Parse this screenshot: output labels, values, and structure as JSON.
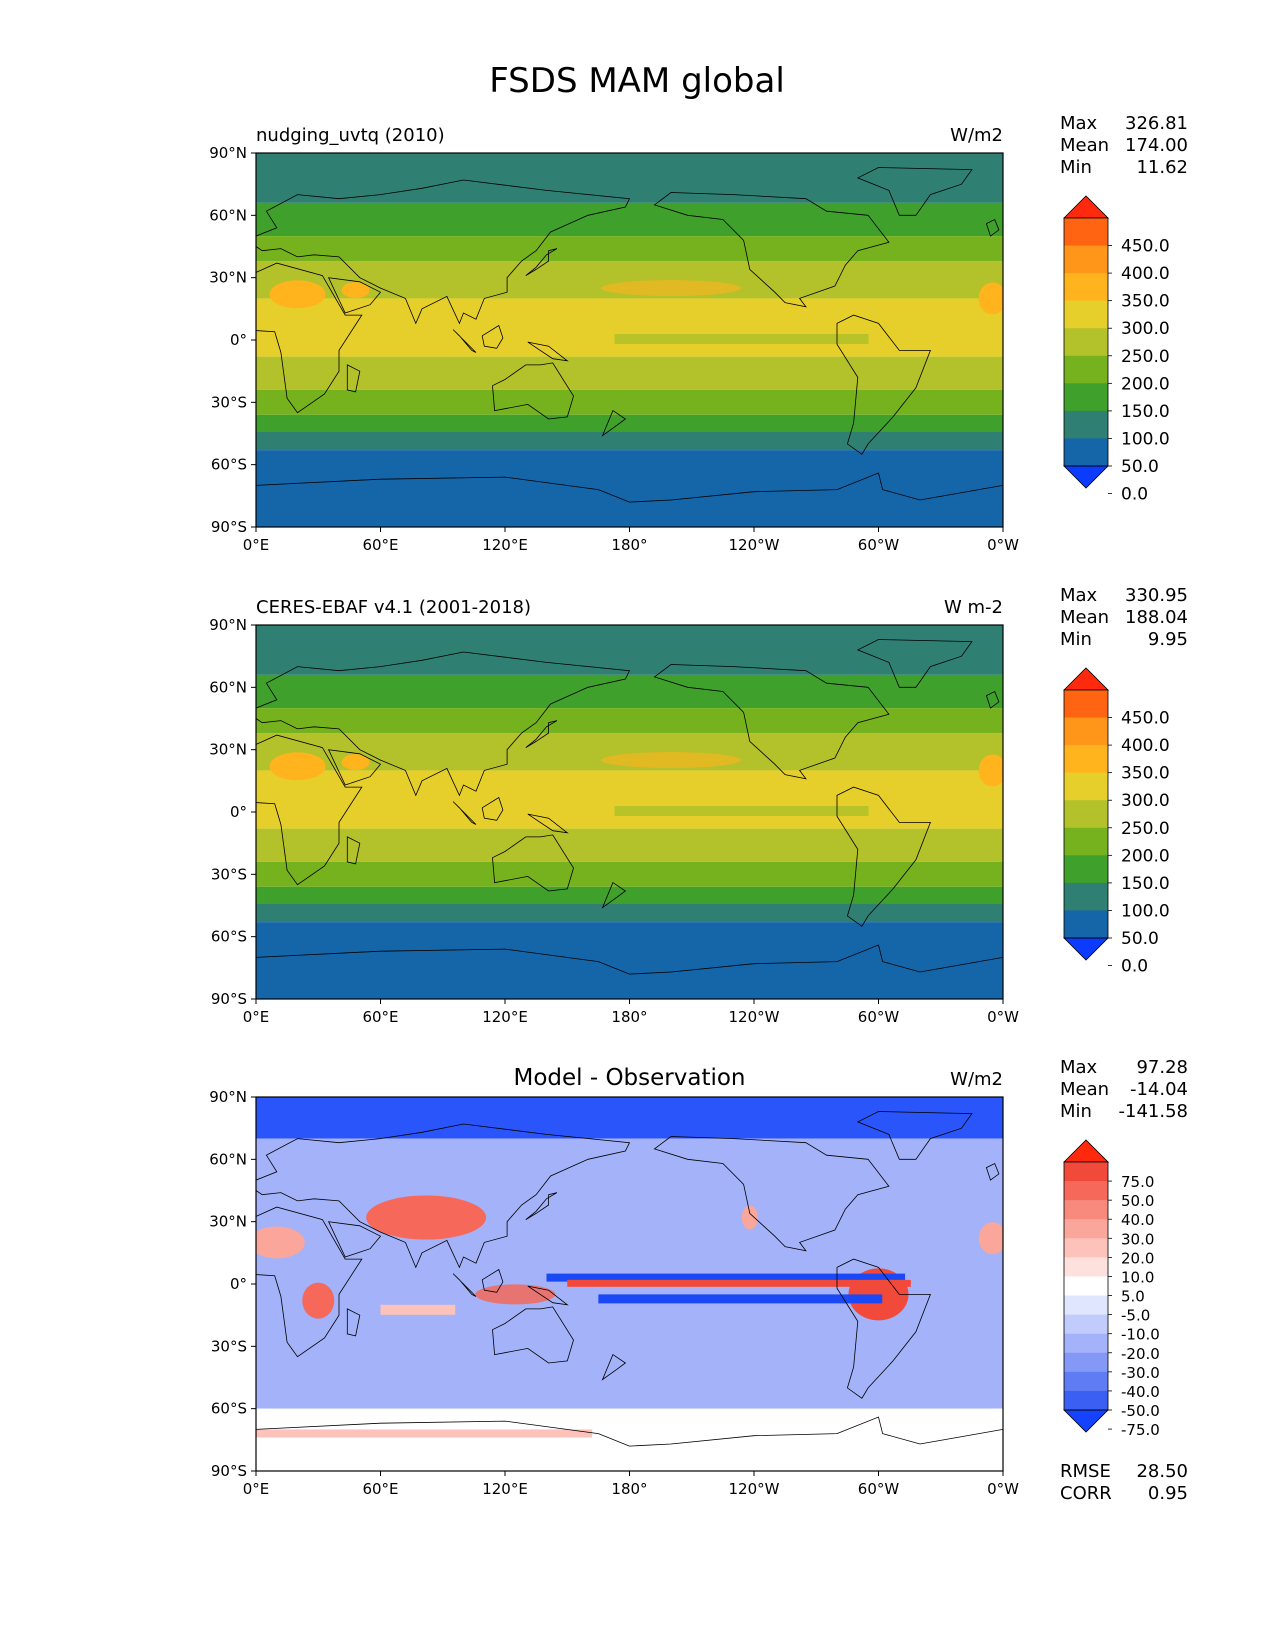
{
  "title": "FSDS MAM global",
  "axes": {
    "lat_ticks": [
      "90°N",
      "60°N",
      "30°N",
      "0°",
      "30°S",
      "60°S",
      "90°S"
    ],
    "lon_ticks": [
      "0°E",
      "60°E",
      "120°E",
      "180°",
      "120°W",
      "60°W",
      "0°W"
    ]
  },
  "panels": [
    {
      "left_title": "nudging_uvtq (2010)",
      "center_title": "",
      "units": "W/m2",
      "stats": {
        "max_label": "Max",
        "max": "326.81",
        "mean_label": "Mean",
        "mean": "174.00",
        "min_label": "Min",
        "min": "11.62"
      },
      "colorbar_labels": [
        "450.0",
        "400.0",
        "350.0",
        "300.0",
        "250.0",
        "200.0",
        "150.0",
        "100.0",
        "50.0",
        "0.0"
      ],
      "colorbar_colors": [
        "#ff2a0e",
        "#ff6412",
        "#ff9519",
        "#ffb41e",
        "#e6cf2a",
        "#b3c12a",
        "#76b21d",
        "#3fa02b",
        "#2f8072",
        "#1565a9",
        "#0b3bff"
      ],
      "map_colors": {
        "ocean_equator": "#e6cf2a",
        "band1": "#b3c12a",
        "band2": "#76b21d",
        "band3": "#3fa02b",
        "band4": "#2f8072",
        "south": "#1565a9",
        "desert": "#ffb41e"
      }
    },
    {
      "left_title": "CERES-EBAF v4.1 (2001-2018)",
      "center_title": "",
      "units": "W m-2",
      "stats": {
        "max_label": "Max",
        "max": "330.95",
        "mean_label": "Mean",
        "mean": "188.04",
        "min_label": "Min",
        "min": "9.95"
      },
      "colorbar_labels": [
        "450.0",
        "400.0",
        "350.0",
        "300.0",
        "250.0",
        "200.0",
        "150.0",
        "100.0",
        "50.0",
        "0.0"
      ],
      "colorbar_colors": [
        "#ff2a0e",
        "#ff6412",
        "#ff9519",
        "#ffb41e",
        "#e6cf2a",
        "#b3c12a",
        "#76b21d",
        "#3fa02b",
        "#2f8072",
        "#1565a9",
        "#0b3bff"
      ],
      "map_colors": {
        "ocean_equator": "#e6cf2a",
        "band1": "#b3c12a",
        "band2": "#76b21d",
        "band3": "#3fa02b",
        "band4": "#2f8072",
        "south": "#1565a9",
        "desert": "#ffb41e"
      }
    },
    {
      "left_title": "",
      "center_title": "Model - Observation",
      "units": "W/m2",
      "stats": {
        "max_label": "Max",
        "max": "97.28",
        "mean_label": "Mean",
        "mean": "-14.04",
        "min_label": "Min",
        "min": "-141.58"
      },
      "colorbar_labels": [
        "75.0",
        "50.0",
        "40.0",
        "30.0",
        "20.0",
        "10.0",
        "5.0",
        "-5.0",
        "-10.0",
        "-20.0",
        "-30.0",
        "-40.0",
        "-50.0",
        "-75.0"
      ],
      "colorbar_colors": [
        "#ff2a0e",
        "#f24a3a",
        "#f5685a",
        "#f8897d",
        "#fba69b",
        "#fdc3bb",
        "#fee0dc",
        "#ffffff",
        "#e0e6fe",
        "#c2ccfc",
        "#a3b2f9",
        "#8499f6",
        "#5f7cf4",
        "#3a5ff2",
        "#1542ff"
      ],
      "rmse_label": "RMSE",
      "rmse": "28.50",
      "corr_label": "CORR",
      "corr": "0.95",
      "map_colors": {
        "base": "#a3b2f9",
        "north": "#2a55fb",
        "pos": "#f5685a",
        "strong_pos": "#f24a3a",
        "neg": "#1a48f5",
        "white": "#ffffff"
      }
    }
  ]
}
